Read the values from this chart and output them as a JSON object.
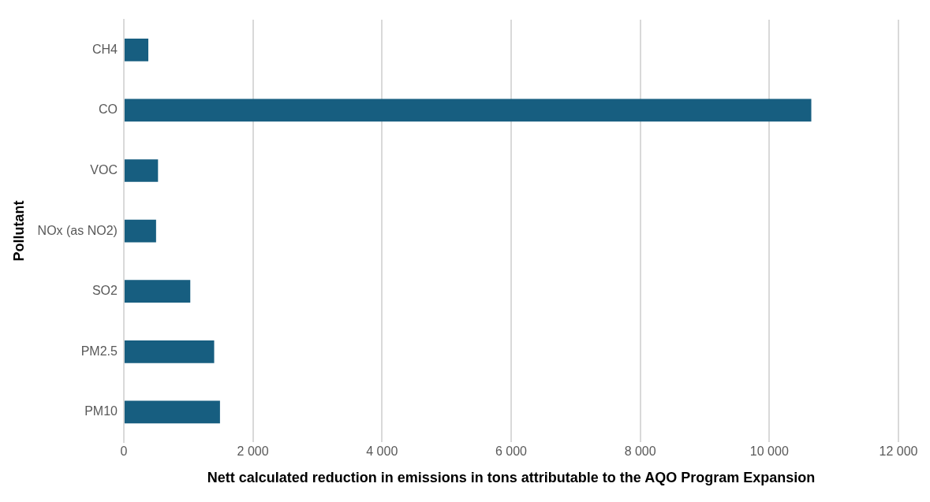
{
  "chart_data": {
    "type": "bar",
    "orientation": "horizontal",
    "categories": [
      "CH4",
      "CO",
      "VOC",
      "NOx (as NO2)",
      "SO2",
      "PM2.5",
      "PM10"
    ],
    "values": [
      380,
      10650,
      530,
      500,
      1030,
      1400,
      1490
    ],
    "color": "#175e80",
    "xlim": [
      0,
      12000
    ],
    "xticks": [
      {
        "value": 0,
        "label": "0"
      },
      {
        "value": 2000,
        "label": "2 000"
      },
      {
        "value": 4000,
        "label": "4 000"
      },
      {
        "value": 6000,
        "label": "6 000"
      },
      {
        "value": 8000,
        "label": "8 000"
      },
      {
        "value": 10000,
        "label": "10 000"
      },
      {
        "value": 12000,
        "label": "12 000"
      }
    ],
    "xlabel": "Nett calculated reduction in emissions in tons attributable to the AQO Program Expansion",
    "ylabel": "Pollutant",
    "grid": "x",
    "legend": false
  }
}
